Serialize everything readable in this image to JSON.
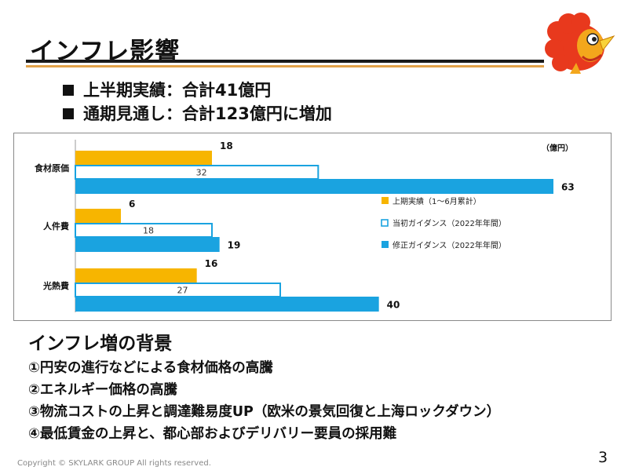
{
  "slide": {
    "title": "インフレ影響",
    "bullets": [
      "上半期実績：合計41億円",
      "通期見通し：合計123億円に増加"
    ],
    "subheading": "インフレ増の背景",
    "reasons": [
      "①円安の進行などによる食材価格の高騰",
      "②エネルギー価格の高騰",
      "③物流コストの上昇と調達難易度UP（欧米の景気回復と上海ロックダウン）",
      "④最低賃金の上昇と、都心部およびデリバリー要員の採用難"
    ],
    "copyright": "Copyright © SKYLARK GROUP All rights reserved.",
    "page_number": "3"
  },
  "chart_data": {
    "type": "bar",
    "orientation": "horizontal",
    "unit_label": "（億円）",
    "categories": [
      "食材原価",
      "人件費",
      "光熱費"
    ],
    "series": [
      {
        "name": "上期実績（1～6月累計）",
        "values": [
          18,
          6,
          16
        ],
        "color": "#f7b500",
        "style": "filled"
      },
      {
        "name": "当初ガイダンス（2022年年間）",
        "values": [
          32,
          18,
          27
        ],
        "color": "#1aa3e0",
        "style": "outline"
      },
      {
        "name": "修正ガイダンス（2022年年間）",
        "values": [
          63,
          19,
          40
        ],
        "color": "#1aa3e0",
        "style": "filled"
      }
    ],
    "xlim": [
      0,
      63
    ],
    "grid": false,
    "legend": "right"
  },
  "colors": {
    "yellow": "#f7b500",
    "blue": "#1aa3e0",
    "rule": "#e2a24a"
  }
}
